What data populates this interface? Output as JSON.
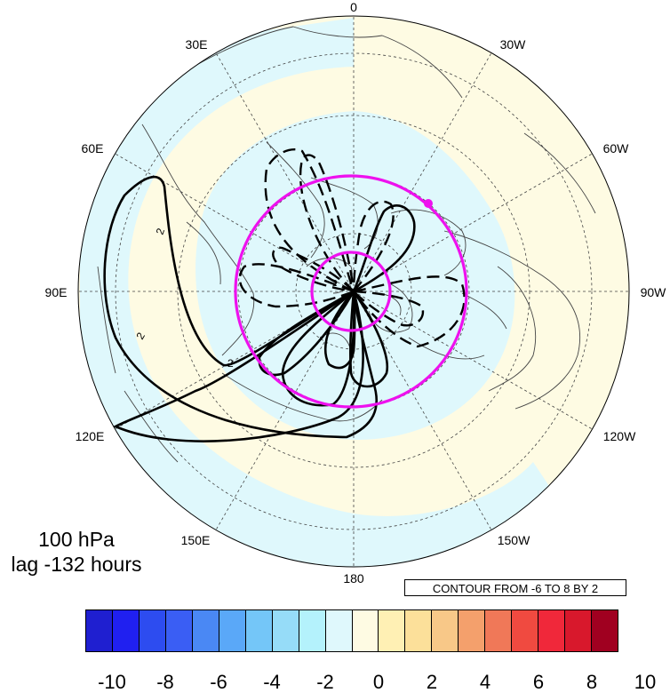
{
  "map": {
    "projection": "north-polar-stereographic",
    "center": "North Pole",
    "lon_labels": [
      {
        "text": "0",
        "lon": 0
      },
      {
        "text": "30E",
        "lon": 30
      },
      {
        "text": "60E",
        "lon": 60
      },
      {
        "text": "90E",
        "lon": 90
      },
      {
        "text": "120E",
        "lon": 120
      },
      {
        "text": "150E",
        "lon": 150
      },
      {
        "text": "180",
        "lon": 180
      },
      {
        "text": "150W",
        "lon": -150
      },
      {
        "text": "120W",
        "lon": -120
      },
      {
        "text": "90W",
        "lon": -90
      },
      {
        "text": "60W",
        "lon": -60
      },
      {
        "text": "30W",
        "lon": -30
      }
    ],
    "colors": {
      "shading_positive": "#fefbe3",
      "shading_negative": "#dff8fc",
      "reference_circles": "#ee11ee",
      "contours": "#000000",
      "coastlines": "#555555"
    }
  },
  "annotations": {
    "level": "100 hPa",
    "lag": "lag -132 hours",
    "contour_info": "CONTOUR FROM -6 TO 8 BY 2",
    "contour_labels": [
      "2",
      "2",
      "2",
      "2"
    ]
  },
  "colorbar": {
    "colors": [
      "#1f1fd0",
      "#2020f0",
      "#2d4cf0",
      "#3a5ef4",
      "#4a88f4",
      "#5aa8f8",
      "#74c6f8",
      "#96dcf8",
      "#b4f2fc",
      "#dff8fc",
      "#fefbe3",
      "#fff0b4",
      "#fce09a",
      "#f8c888",
      "#f4a06c",
      "#f07858",
      "#f04a40",
      "#f0283a",
      "#d8182c",
      "#a00020"
    ],
    "labels": [
      "-10",
      "-8",
      "-6",
      "-4",
      "-2",
      "0",
      "2",
      "4",
      "6",
      "8",
      "10"
    ]
  }
}
